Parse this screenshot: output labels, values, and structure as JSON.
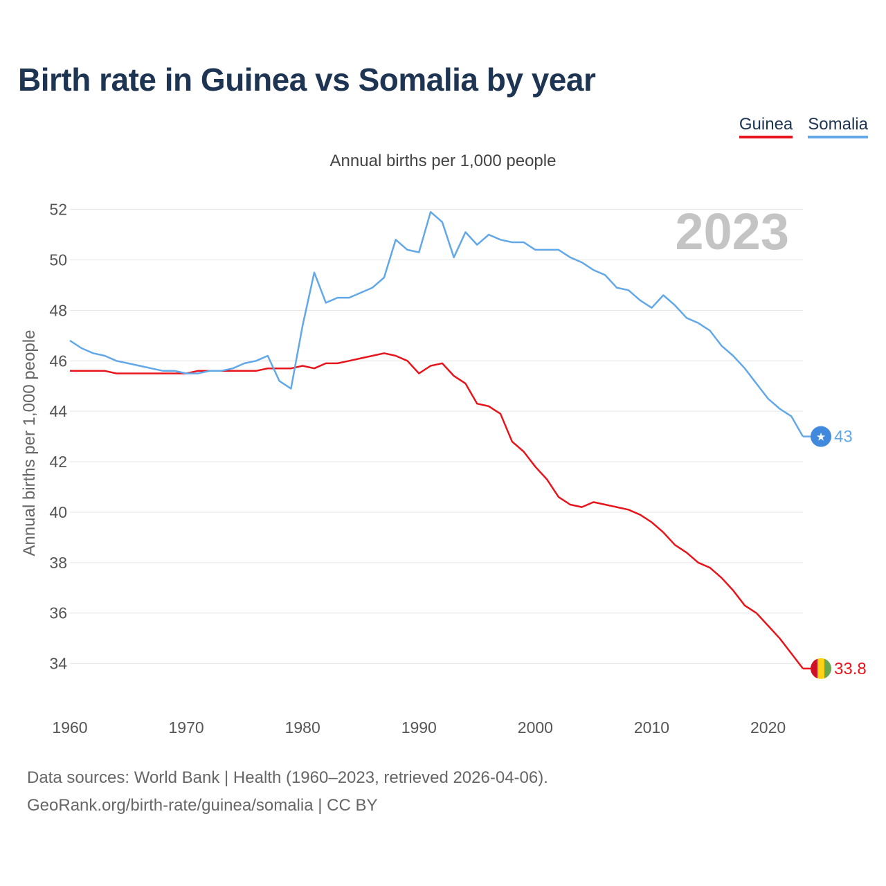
{
  "chart_data": {
    "type": "line",
    "title": "Birth rate in Guinea vs Somalia by year",
    "subtitle": "Annual births per 1,000 people",
    "ylabel": "Annual births per 1,000 people",
    "xlabel": "",
    "year_label": "2023",
    "xlim": [
      1960,
      2023
    ],
    "ylim": [
      32.7,
      52.4
    ],
    "x_ticks": [
      1960,
      1970,
      1980,
      1990,
      2000,
      2010,
      2020
    ],
    "y_ticks": [
      34,
      36,
      38,
      40,
      42,
      44,
      46,
      48,
      50,
      52
    ],
    "x": [
      1960,
      1961,
      1962,
      1963,
      1964,
      1965,
      1966,
      1967,
      1968,
      1969,
      1970,
      1971,
      1972,
      1973,
      1974,
      1975,
      1976,
      1977,
      1978,
      1979,
      1980,
      1981,
      1982,
      1983,
      1984,
      1985,
      1986,
      1987,
      1988,
      1989,
      1990,
      1991,
      1992,
      1993,
      1994,
      1995,
      1996,
      1997,
      1998,
      1999,
      2000,
      2001,
      2002,
      2003,
      2004,
      2005,
      2006,
      2007,
      2008,
      2009,
      2010,
      2011,
      2012,
      2013,
      2014,
      2015,
      2016,
      2017,
      2018,
      2019,
      2020,
      2021,
      2022,
      2023
    ],
    "series": [
      {
        "name": "Guinea",
        "color": "#e8141c",
        "end_label": "33.8",
        "values": [
          45.6,
          45.6,
          45.6,
          45.6,
          45.5,
          45.5,
          45.5,
          45.5,
          45.5,
          45.5,
          45.5,
          45.6,
          45.6,
          45.6,
          45.6,
          45.6,
          45.6,
          45.7,
          45.7,
          45.7,
          45.8,
          45.7,
          45.9,
          45.9,
          46.0,
          46.1,
          46.2,
          46.3,
          46.2,
          46.0,
          45.5,
          45.8,
          45.9,
          45.4,
          45.1,
          44.3,
          44.2,
          43.9,
          42.8,
          42.4,
          41.8,
          41.3,
          40.6,
          40.3,
          40.2,
          40.4,
          40.3,
          40.2,
          40.1,
          39.9,
          39.6,
          39.2,
          38.7,
          38.4,
          38.0,
          37.8,
          37.4,
          36.9,
          36.3,
          36.0,
          35.5,
          35.0,
          34.4,
          33.8
        ]
      },
      {
        "name": "Somalia",
        "color": "#62a8e8",
        "end_label": "43",
        "values": [
          46.8,
          46.5,
          46.3,
          46.2,
          46.0,
          45.9,
          45.8,
          45.7,
          45.6,
          45.6,
          45.5,
          45.5,
          45.6,
          45.6,
          45.7,
          45.9,
          46.0,
          46.2,
          45.2,
          44.9,
          47.4,
          49.5,
          48.3,
          48.5,
          48.5,
          48.7,
          48.9,
          49.3,
          50.8,
          50.4,
          50.3,
          51.9,
          51.5,
          50.1,
          51.1,
          50.6,
          51.0,
          50.8,
          50.7,
          50.7,
          50.4,
          50.4,
          50.4,
          50.1,
          49.9,
          49.6,
          49.4,
          48.9,
          48.8,
          48.4,
          48.1,
          48.6,
          48.2,
          47.7,
          47.5,
          47.2,
          46.6,
          46.2,
          45.7,
          45.1,
          44.5,
          44.1,
          43.8,
          43.0
        ]
      }
    ]
  },
  "legend": {
    "items": [
      {
        "label": "Guinea",
        "color": "#e8141c"
      },
      {
        "label": "Somalia",
        "color": "#62a8e8"
      }
    ]
  },
  "source": {
    "line1": "Data sources: World Bank | Health (1960–2023, retrieved 2026-04-06).",
    "line2": "GeoRank.org/birth-rate/guinea/somalia | CC BY"
  }
}
